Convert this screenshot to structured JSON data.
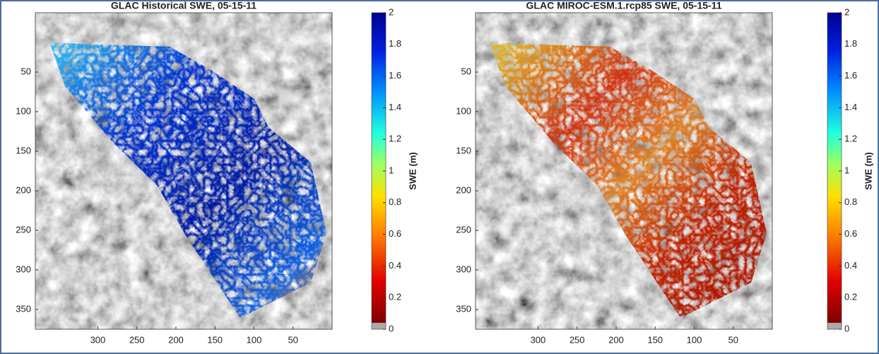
{
  "chart_data": [
    {
      "type": "map",
      "title": "GLAC Historical SWE, 05-15-11",
      "xlim": [
        380,
        0
      ],
      "xticks": [
        300,
        250,
        200,
        150,
        100,
        50
      ],
      "ylim": [
        -25,
        375
      ],
      "yticks": [
        50,
        100,
        150,
        200,
        250,
        300,
        350
      ],
      "colorbar": {
        "label": "SWE (m)",
        "lim": [
          0,
          2
        ],
        "ticks": [
          0,
          0.2,
          0.4,
          0.6,
          0.8,
          1,
          1.2,
          1.4,
          1.6,
          1.8,
          2
        ]
      }
    },
    {
      "type": "map",
      "title": "GLAC MIROC-ESM.1.rcp85 SWE, 05-15-11",
      "xlim": [
        380,
        0
      ],
      "xticks": [
        300,
        250,
        200,
        150,
        100,
        50
      ],
      "ylim": [
        -25,
        375
      ],
      "yticks": [
        50,
        100,
        150,
        200,
        250,
        300,
        350
      ],
      "colorbar": {
        "label": "SWE (m)",
        "lim": [
          0,
          2
        ],
        "ticks": [
          0,
          0.2,
          0.4,
          0.6,
          0.8,
          1,
          1.2,
          1.4,
          1.6,
          1.8,
          2
        ]
      }
    }
  ]
}
